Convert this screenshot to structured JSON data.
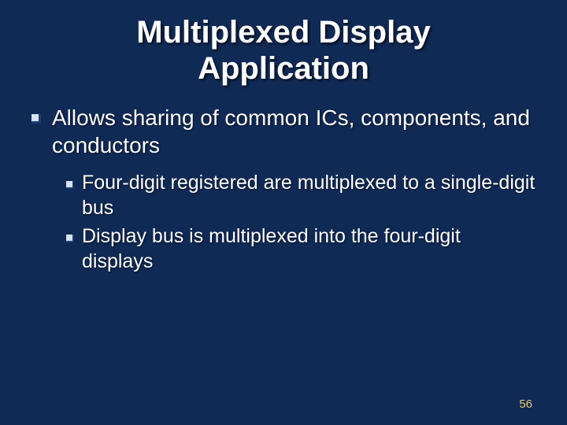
{
  "slide": {
    "background_color": "#102a56",
    "text_color": "#ffffff",
    "title": {
      "line1": "Multiplexed Display",
      "line2": "Application",
      "fontsize": 40,
      "color": "#ffffff"
    },
    "bullet_marker": {
      "size_l1": 12,
      "size_l2": 10,
      "color_light": "#d6e3f3",
      "color_dark": "#1f3e70"
    },
    "bullets_l1": [
      {
        "text": "Allows sharing of common ICs, components, and conductors",
        "fontsize": 28
      }
    ],
    "bullets_l2": [
      {
        "text": "Four-digit registered are multiplexed to a single-digit bus",
        "fontsize": 25
      },
      {
        "text": "Display bus is multiplexed into the four-digit displays",
        "fontsize": 25
      }
    ],
    "page_number": {
      "value": "56",
      "fontsize": 15,
      "color": "#e8c66a"
    }
  }
}
